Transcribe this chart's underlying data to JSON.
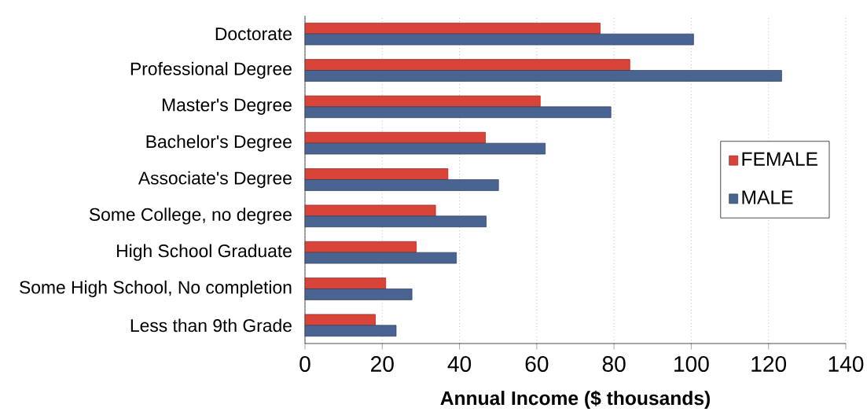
{
  "chart_data": {
    "type": "bar",
    "orientation": "horizontal",
    "xlabel": "Annual Income ($ thousands)",
    "categories": [
      "Doctorate",
      "Professional Degree",
      "Master's Degree",
      "Bachelor's Degree",
      "Associate's Degree",
      "Some College, no degree",
      "High School Graduate",
      "Some High School, No completion",
      "Less than 9th Grade"
    ],
    "series": [
      {
        "name": "FEMALE",
        "color": "#d9443a",
        "values": [
          76.4,
          84.1,
          60.9,
          46.7,
          37.0,
          33.8,
          28.8,
          20.9,
          18.2
        ]
      },
      {
        "name": "MALE",
        "color": "#4a6491",
        "values": [
          100.6,
          123.4,
          79.2,
          62.2,
          50.1,
          46.9,
          39.2,
          27.7,
          23.6
        ]
      }
    ],
    "xlim": [
      0,
      140
    ],
    "xticks": [
      0,
      20,
      40,
      60,
      80,
      100,
      120,
      140
    ],
    "grid": "x",
    "legend": "right"
  }
}
